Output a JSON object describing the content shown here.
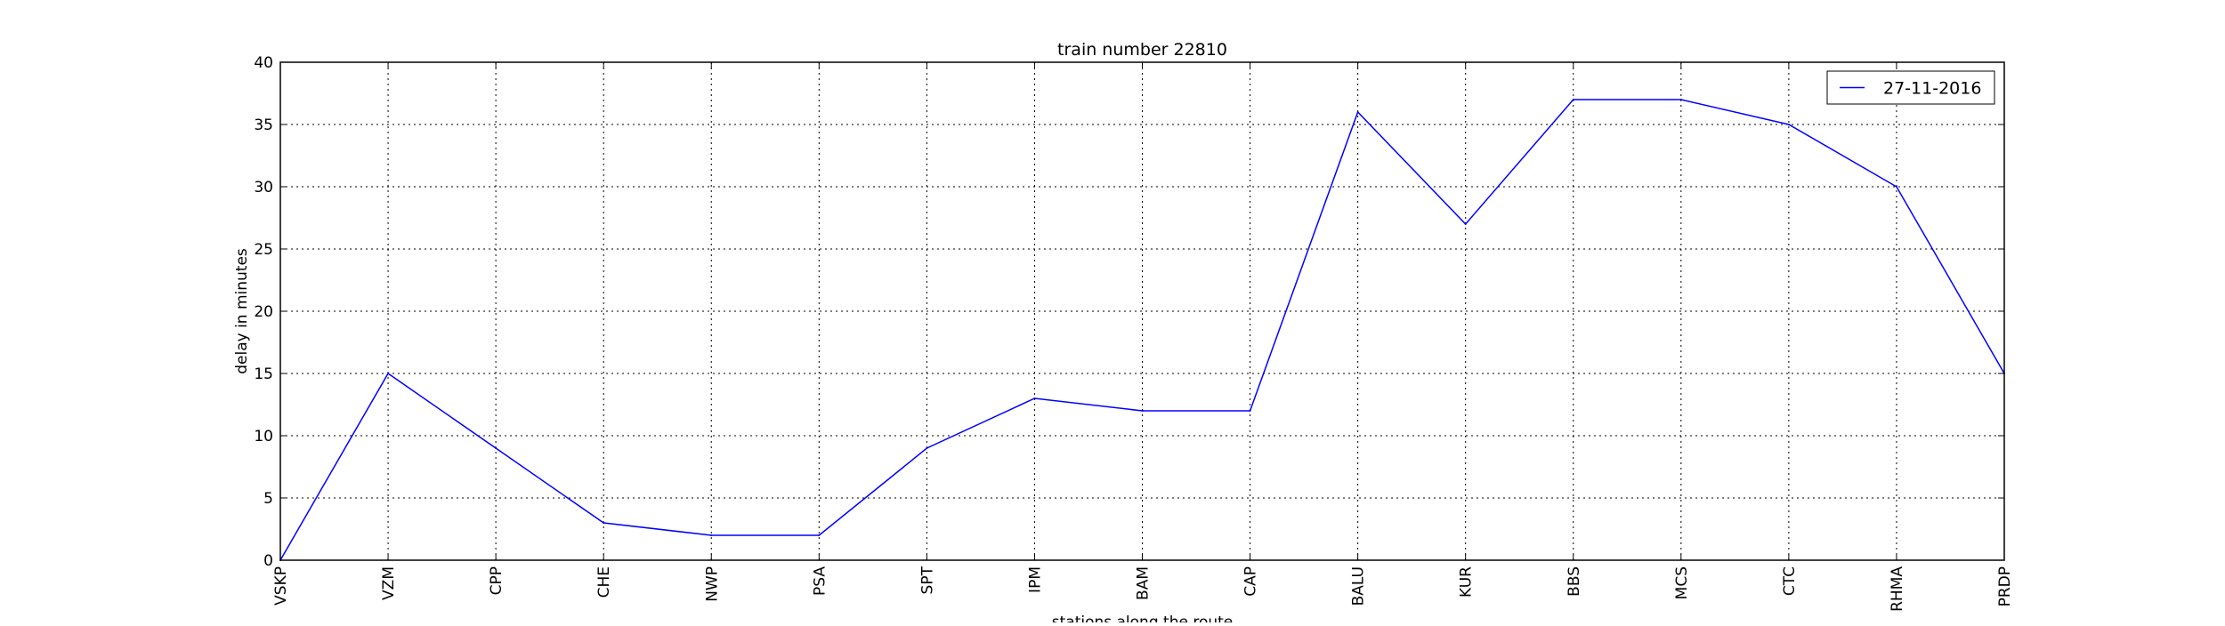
{
  "chart_data": {
    "type": "line",
    "title": "train number 22810",
    "xlabel": "stations along the route",
    "ylabel": "delay in minutes",
    "categories": [
      "VSKP",
      "VZM",
      "CPP",
      "CHE",
      "NWP",
      "PSA",
      "SPT",
      "IPM",
      "BAM",
      "CAP",
      "BALU",
      "KUR",
      "BBS",
      "MCS",
      "CTC",
      "RHMA",
      "PRDP"
    ],
    "series": [
      {
        "name": "27-11-2016",
        "color": "#0000ff",
        "values": [
          0,
          15,
          9,
          3,
          2,
          2,
          9,
          13,
          12,
          12,
          36,
          27,
          37,
          37,
          35,
          30,
          15
        ]
      }
    ],
    "ylim": [
      0,
      40
    ],
    "yticks": [
      0,
      5,
      10,
      15,
      20,
      25,
      30,
      35,
      40
    ],
    "grid": true,
    "legend_position": "top-right"
  }
}
